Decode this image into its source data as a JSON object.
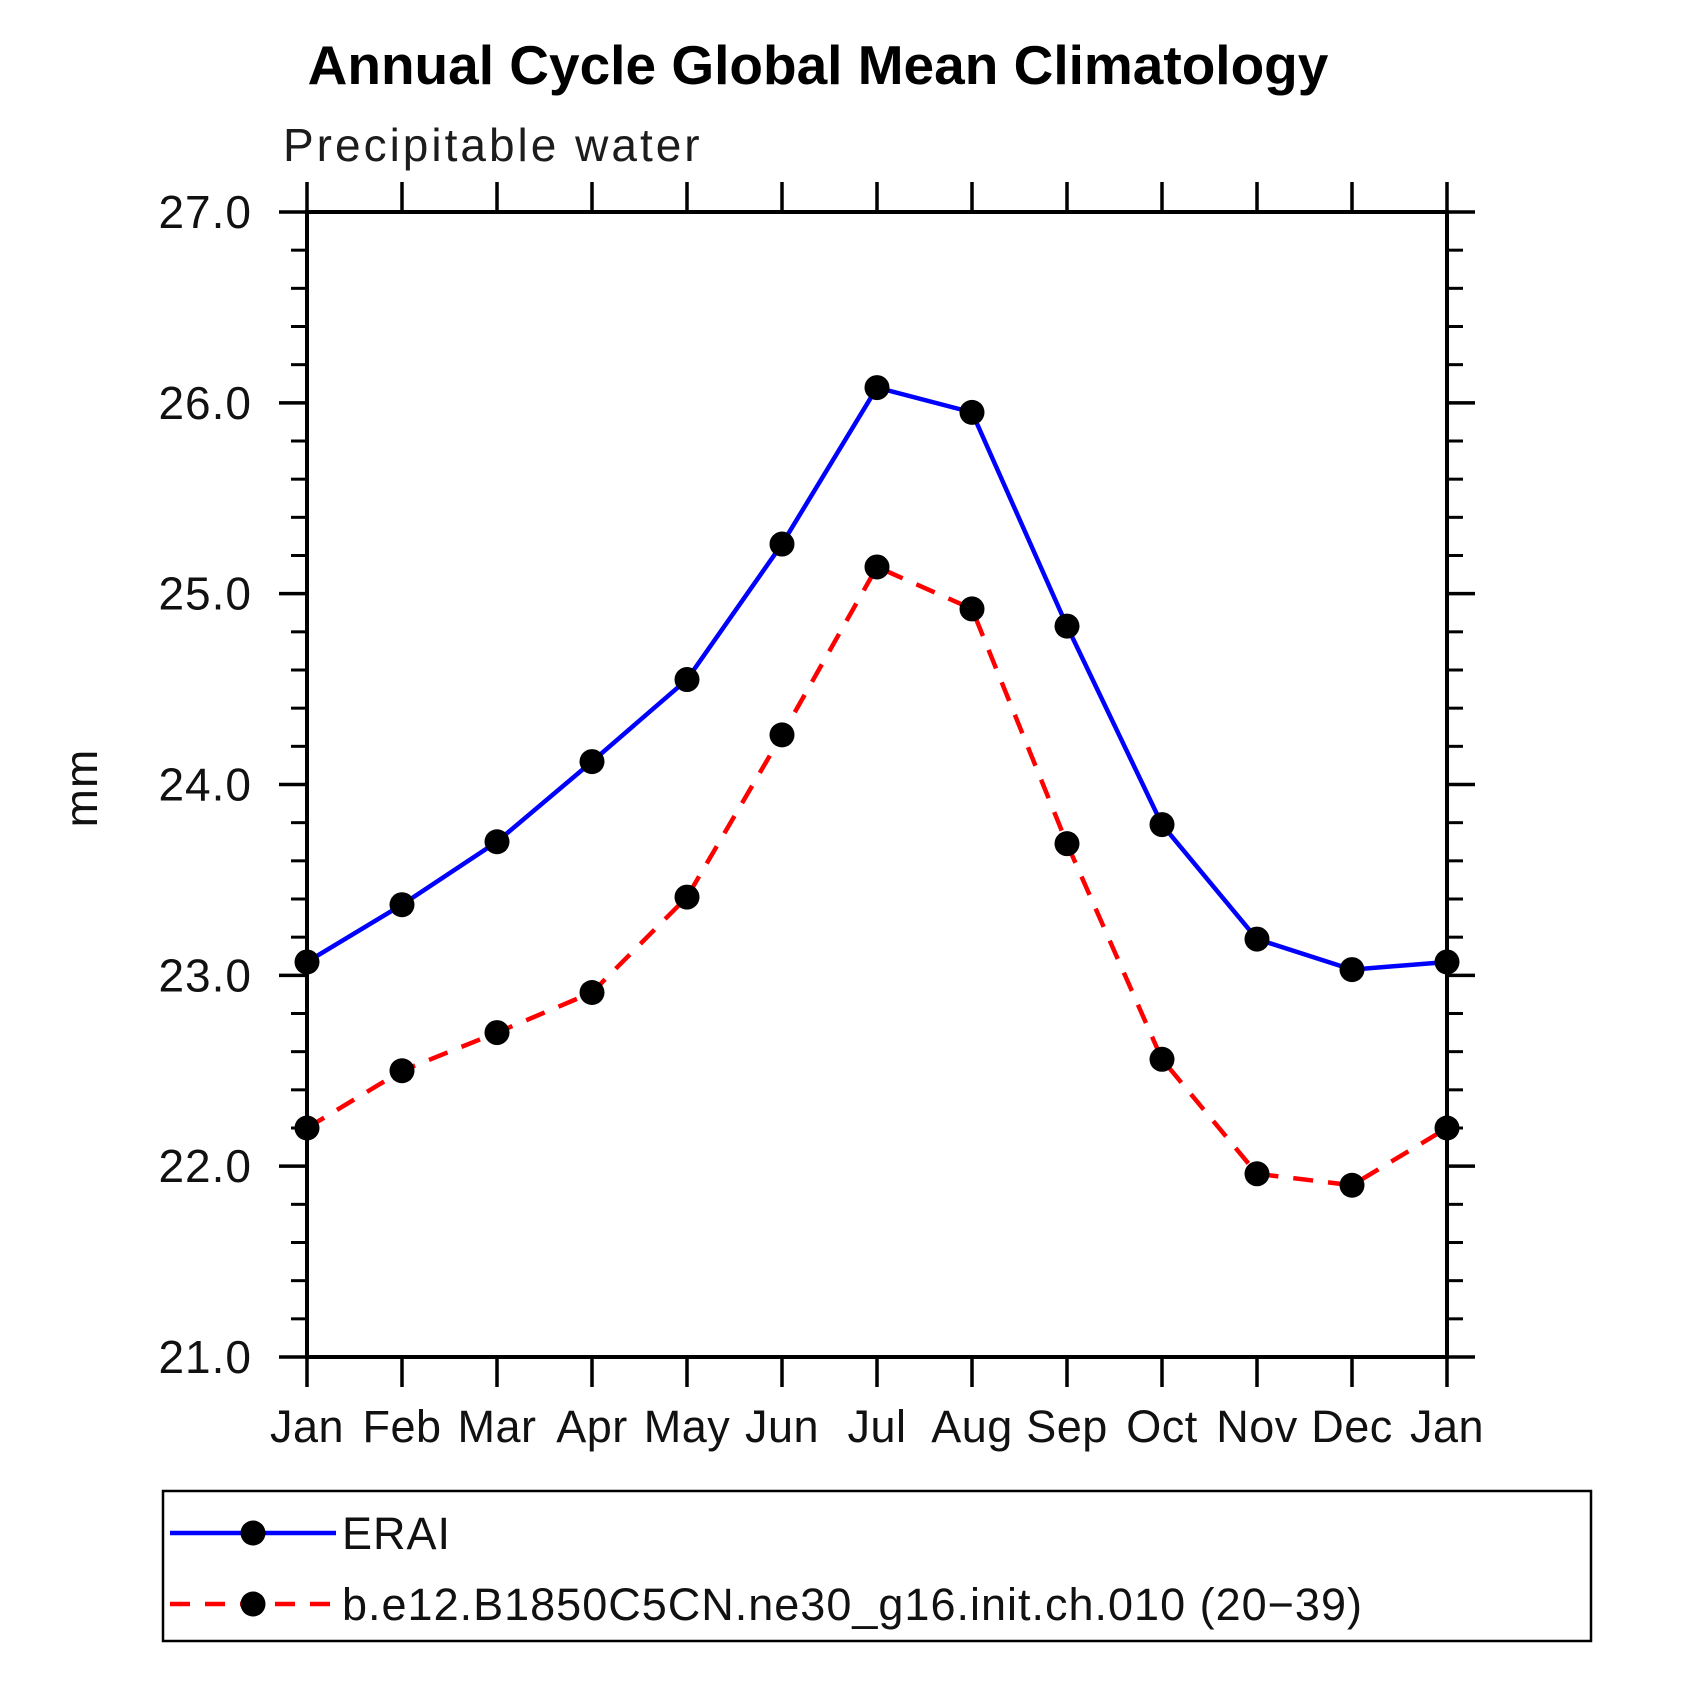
{
  "page": {
    "background": "#ffffff"
  },
  "chart_data": {
    "type": "line",
    "title": "Annual Cycle Global Mean Climatology",
    "subtitle": "Precipitable water",
    "ylabel": "mm",
    "xlabel": "",
    "categories": [
      "Jan",
      "Feb",
      "Mar",
      "Apr",
      "May",
      "Jun",
      "Jul",
      "Aug",
      "Sep",
      "Oct",
      "Nov",
      "Dec",
      "Jan"
    ],
    "ylim": [
      21.0,
      27.0
    ],
    "y_major_step": 1.0,
    "y_minor_step": 0.2,
    "y_tick_labels": [
      "21.0",
      "22.0",
      "23.0",
      "24.0",
      "25.0",
      "26.0",
      "27.0"
    ],
    "grid": false,
    "legend_position": "bottom-left",
    "frame_color": "#000000",
    "marker_color": "#000000",
    "series": [
      {
        "name": "ERAI",
        "color": "#0000ff",
        "line_style": "solid",
        "marker": "circle",
        "values": [
          23.07,
          23.37,
          23.7,
          24.12,
          24.55,
          25.26,
          26.08,
          25.95,
          24.83,
          23.79,
          23.19,
          23.03,
          23.07
        ]
      },
      {
        "name": "b.e12.B1850C5CN.ne30_g16.init.ch.010 (20−39)",
        "color": "#ff0000",
        "line_style": "dashed",
        "marker": "circle",
        "values": [
          22.2,
          22.5,
          22.7,
          22.91,
          23.41,
          24.26,
          25.14,
          24.92,
          23.69,
          22.56,
          21.96,
          21.9,
          22.2
        ]
      }
    ]
  }
}
